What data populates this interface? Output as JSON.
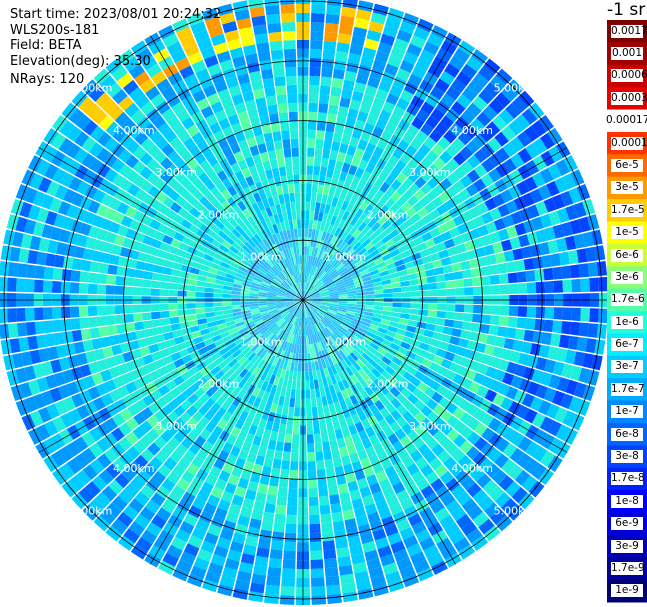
{
  "header": {
    "start_time": "Start time: 2023/08/01 20:24:32",
    "device": "WLS200s-181",
    "field": "Field: BETA",
    "elevation": "Elevation(deg): 35.30",
    "nrays": "NRays: 120"
  },
  "colorbar": {
    "title": "-1 sr",
    "labels": [
      "0.0017",
      "0.001",
      "0.0006",
      "0.0003",
      "0.00017",
      "0.0001",
      "6e-5",
      "3e-5",
      "1.7e-5",
      "1e-5",
      "6e-6",
      "3e-6",
      "1.7e-6",
      "1e-6",
      "6e-7",
      "3e-7",
      "1.7e-7",
      "1e-7",
      "6e-8",
      "3e-8",
      "1.7e-8",
      "1e-8",
      "6e-9",
      "3e-9",
      "1.7e-9",
      "1e-9"
    ],
    "colors": [
      "#7f0000",
      "#a00000",
      "#c80000",
      "#e60000",
      "#ffffff",
      "#ff3300",
      "#ff6a00",
      "#ff9900",
      "#ffcc00",
      "#ffff00",
      "#ccff33",
      "#88ff77",
      "#55ffaa",
      "#22ffdd",
      "#00eeff",
      "#00ccff",
      "#00aaff",
      "#0088ff",
      "#0066ff",
      "#0044ff",
      "#0022ff",
      "#0000ff",
      "#0000dd",
      "#0000bb",
      "#000099",
      "#000077"
    ]
  },
  "chart_data": {
    "type": "heatmap",
    "projection": "polar (PPI scan)",
    "field": "BETA",
    "n_rays": 120,
    "range_ring_labels": [
      "1.00km",
      "2.00km",
      "3.00km",
      "4.00km",
      "5.00km"
    ],
    "range_rings_km": [
      1,
      2,
      3,
      4,
      5
    ],
    "max_range_km": 5.1,
    "spoke_angles_deg": [
      0,
      30,
      60,
      90,
      120,
      150,
      180,
      210,
      240,
      270,
      300,
      330
    ],
    "dominant_colors": [
      "#22eedd",
      "#00ccff",
      "#0099ff"
    ],
    "high_value_arc": {
      "azimuth_deg": [
        -50,
        15
      ],
      "range_km": [
        4.3,
        5.0
      ],
      "colors": [
        "#ffcc00",
        "#ff9900",
        "#ffff00"
      ]
    },
    "low_value_region": {
      "azimuth_deg": [
        30,
        120
      ],
      "range_km": [
        3.5,
        5.1
      ],
      "colors": [
        "#0066ff",
        "#0044ff"
      ]
    },
    "grid": true
  }
}
